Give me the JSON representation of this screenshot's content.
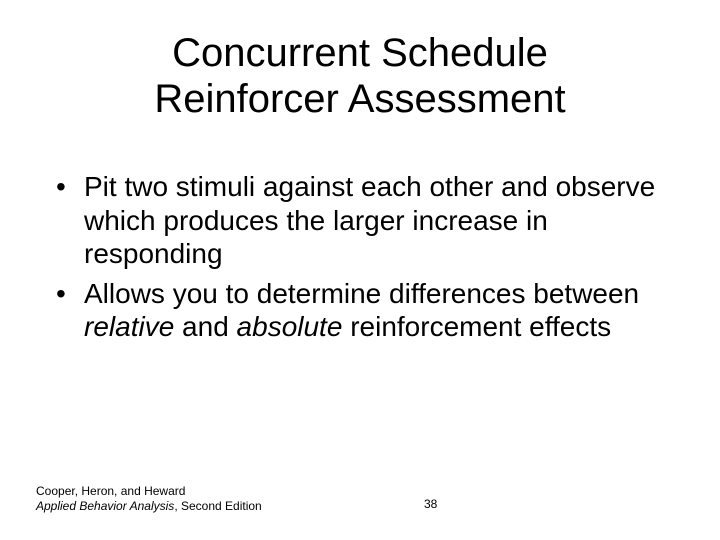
{
  "title": {
    "line1": "Concurrent Schedule",
    "line2": "Reinforcer Assessment"
  },
  "bullets": [
    {
      "text_before": "Pit two stimuli against each other and observe which produces the larger increase in responding",
      "em1": "",
      "mid": "",
      "em2": "",
      "after": ""
    },
    {
      "text_before": "Allows you to determine differences between ",
      "em1": "relative",
      "mid": " and ",
      "em2": "absolute",
      "after": " reinforcement effects"
    }
  ],
  "footer": {
    "authors": "Cooper, Heron, and Heward",
    "book": "Applied Behavior Analysis",
    "edition": ", Second Edition",
    "page": "38"
  },
  "style": {
    "title_fontsize": 40,
    "body_fontsize": 28,
    "footer_fontsize": 12,
    "text_color": "#000000",
    "background_color": "#ffffff"
  }
}
